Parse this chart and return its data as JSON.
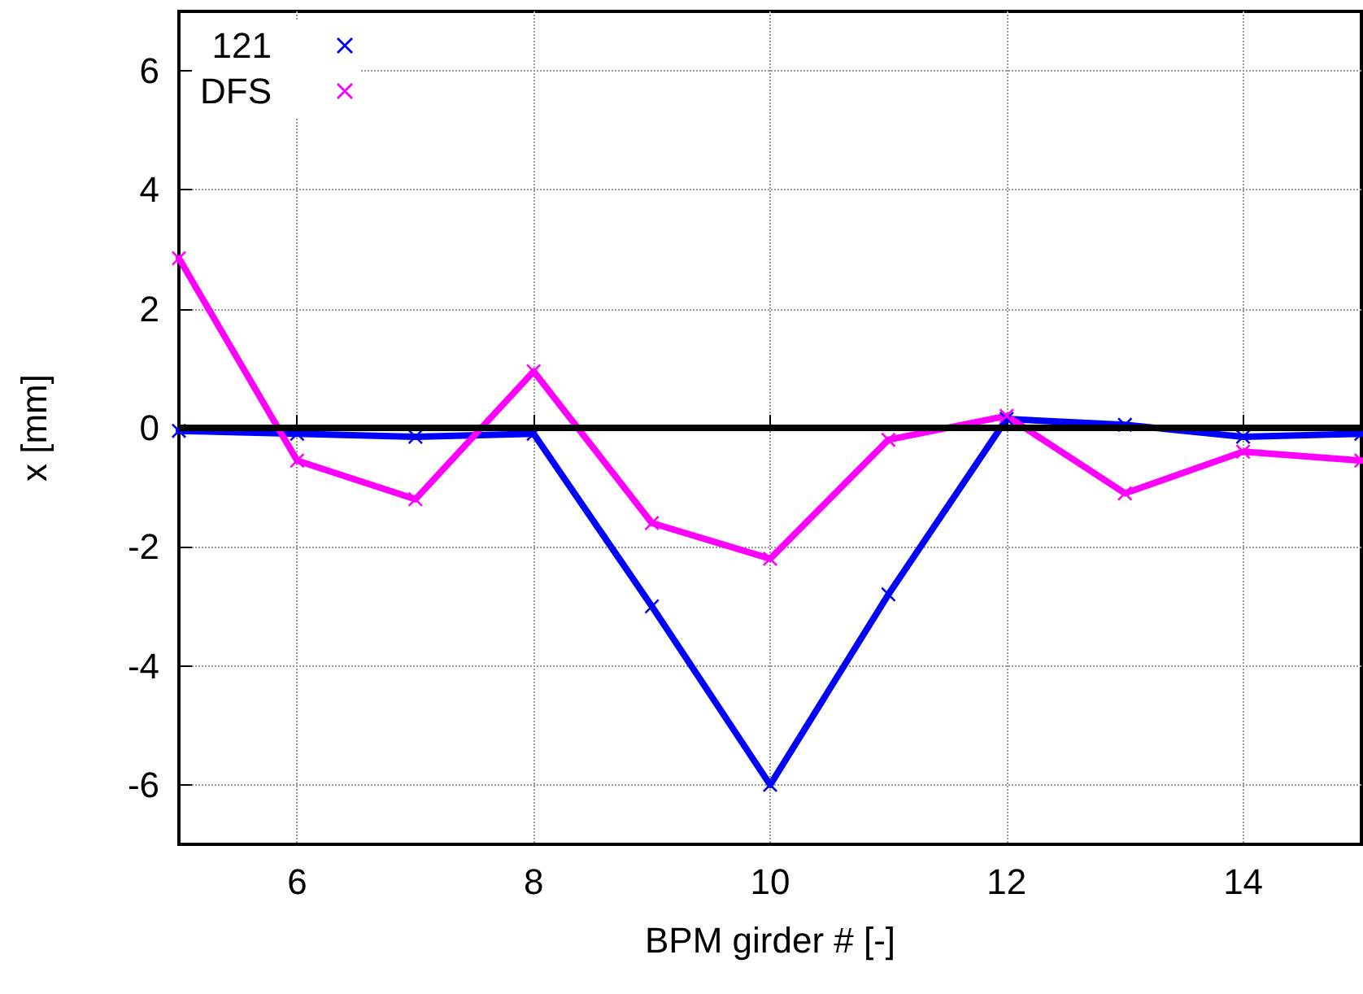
{
  "chart_data": {
    "type": "line",
    "xlabel": "BPM girder # [-]",
    "ylabel": "x [mm]",
    "x": [
      5,
      6,
      7,
      8,
      9,
      10,
      11,
      12,
      13,
      14,
      15
    ],
    "series": [
      {
        "name": "121",
        "color": "#0000ff",
        "values": [
          -0.05,
          -0.1,
          -0.15,
          -0.1,
          -3.0,
          -6.0,
          -2.8,
          0.15,
          0.05,
          -0.15,
          -0.1
        ]
      },
      {
        "name": "DFS",
        "color": "#ff00ff",
        "values": [
          2.85,
          -0.55,
          -1.2,
          0.95,
          -1.6,
          -2.2,
          -0.2,
          0.2,
          -1.1,
          -0.4,
          -0.55
        ]
      }
    ],
    "xlim": [
      5,
      15
    ],
    "xticks": [
      6,
      8,
      10,
      12,
      14
    ],
    "ylim": [
      -7,
      7
    ],
    "yticks": [
      -6,
      -4,
      -2,
      0,
      2,
      4,
      6
    ],
    "ref_lines": [
      {
        "axis": "y",
        "value": 0,
        "color": "#000000"
      }
    ],
    "grid": true,
    "legend": "top left",
    "marker": "cross",
    "line_style": "solid"
  }
}
